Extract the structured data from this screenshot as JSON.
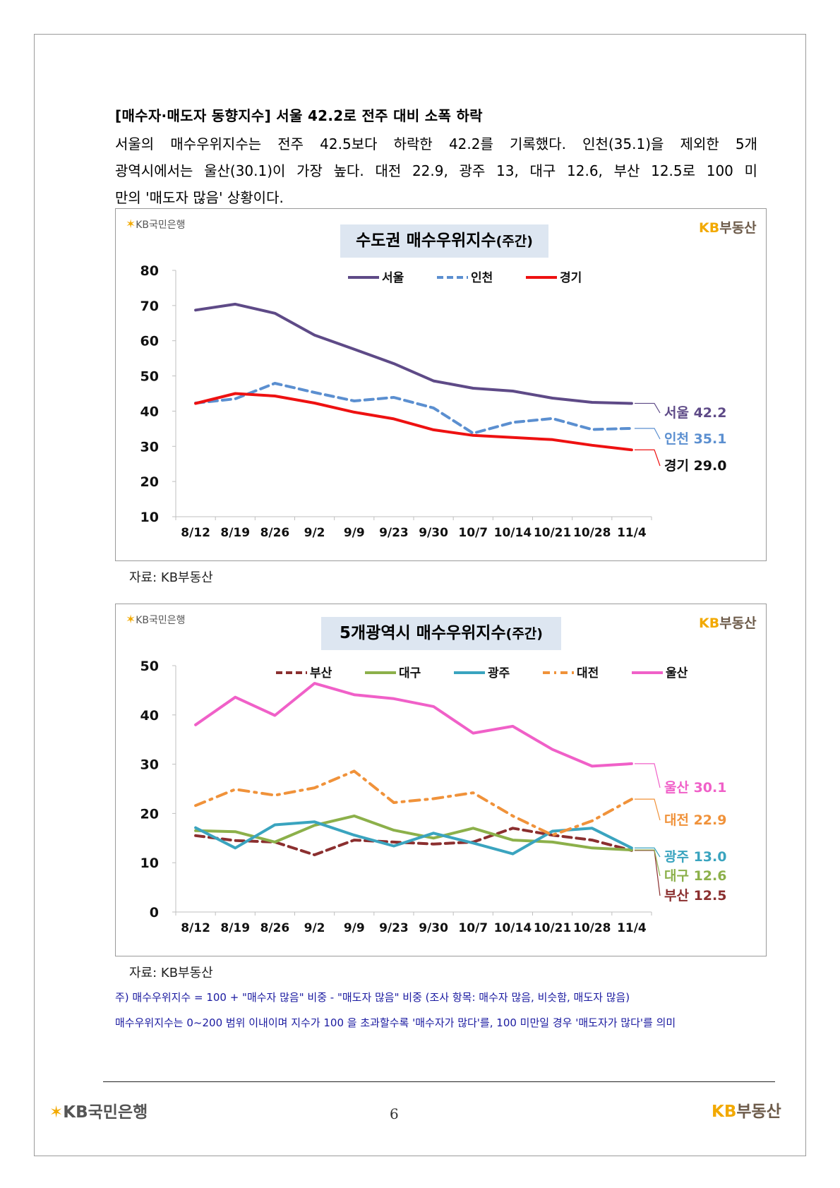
{
  "heading": "[매수자·매도자 동향지수] 서울 42.2로 전주 대비 소폭 하락",
  "paragraph_lines": [
    "서울의 매수우위지수는 전주 42.5보다 하락한 42.2를 기록했다. 인천(35.1)을 제외한 5개",
    "광역시에서는 울산(30.1)이 가장 높다. 대전 22.9, 광주 13, 대구 12.6, 부산 12.5로 100 미",
    "만의 '매도자 많음' 상황이다."
  ],
  "logos": {
    "kb_bank": "KB국민은행",
    "kb_realestate_kb": "KB",
    "kb_realestate_kr": "부동산"
  },
  "colors": {
    "seoul": "#5e4a87",
    "incheon": "#5b8fd0",
    "gyeonggi": "#ee1111",
    "busan": "#8b2f2f",
    "daegu": "#8cb04a",
    "gwangju": "#3aa4bf",
    "daejeon": "#f0923a",
    "ulsan": "#f060c8",
    "title_bg": "#dde6f1",
    "note": "#1a1aa0"
  },
  "chart1_title_main": "수도권 매수우위지수",
  "chart1_title_small": "(주간)",
  "chart2_title_main": "5개광역시 매수우위지수",
  "chart2_title_small": "(주간)",
  "source_1": "자료: KB부동산",
  "source_2": "자료: KB부동산",
  "notes": [
    "주) 매수우위지수 = 100 + \"매수자 많음\" 비중 - \"매도자 많음\" 비중  (조사 항목: 매수자 많음, 비슷함, 매도자 많음)",
    "매수우위지수는 0~200 범위 이내이며 지수가 100 을 초과할수록 '매수자가 많다'를, 100 미만일 경우 '매도자가 많다'를 의미"
  ],
  "page_number": "6",
  "chart_data": [
    {
      "type": "line",
      "title": "수도권 매수우위지수(주간)",
      "categories": [
        "8/12",
        "8/19",
        "8/26",
        "9/2",
        "9/9",
        "9/23",
        "9/30",
        "10/7",
        "10/14",
        "10/21",
        "10/28",
        "11/4"
      ],
      "ylim": [
        10,
        80
      ],
      "yticks": [
        10,
        20,
        30,
        40,
        50,
        60,
        70,
        80
      ],
      "grid": false,
      "legend_position": "top",
      "series": [
        {
          "name": "서울",
          "color": "#5e4a87",
          "dash": "solid",
          "values": [
            68.7,
            70.4,
            67.8,
            61.6,
            57.6,
            53.5,
            48.6,
            46.5,
            45.7,
            43.7,
            42.5,
            42.2
          ],
          "end_label": "서울 42.2"
        },
        {
          "name": "인천",
          "color": "#5b8fd0",
          "dash": "dash",
          "values": [
            42.3,
            43.5,
            47.9,
            45.3,
            42.9,
            43.9,
            40.9,
            33.7,
            36.8,
            37.9,
            34.8,
            35.1
          ],
          "end_label": "인천 35.1"
        },
        {
          "name": "경기",
          "color": "#ee1111",
          "dash": "solid",
          "values": [
            42.2,
            45.0,
            44.3,
            42.3,
            39.7,
            37.8,
            34.7,
            33.1,
            32.5,
            31.9,
            30.3,
            29.0
          ],
          "end_label": "경기 29.0"
        }
      ]
    },
    {
      "type": "line",
      "title": "5개광역시 매수우위지수(주간)",
      "categories": [
        "8/12",
        "8/19",
        "8/26",
        "9/2",
        "9/9",
        "9/23",
        "9/30",
        "10/7",
        "10/14",
        "10/21",
        "10/28",
        "11/4"
      ],
      "ylim": [
        0,
        50
      ],
      "yticks": [
        0,
        10,
        20,
        30,
        40,
        50
      ],
      "grid": false,
      "legend_position": "top",
      "series": [
        {
          "name": "부산",
          "color": "#8b2f2f",
          "dash": "dash",
          "values": [
            15.5,
            14.5,
            14.2,
            11.6,
            14.6,
            14.2,
            13.8,
            14.2,
            17.0,
            15.6,
            14.6,
            12.5
          ],
          "end_label": "부산 12.5"
        },
        {
          "name": "대구",
          "color": "#8cb04a",
          "dash": "solid",
          "values": [
            16.5,
            16.3,
            14.2,
            17.6,
            19.5,
            16.6,
            15.0,
            17.0,
            14.6,
            14.2,
            13.0,
            12.6
          ],
          "end_label": "대구 12.6"
        },
        {
          "name": "광주",
          "color": "#3aa4bf",
          "dash": "solid",
          "values": [
            17.1,
            13.0,
            17.7,
            18.3,
            15.6,
            13.4,
            16.0,
            14.0,
            11.8,
            16.4,
            17.0,
            13.0
          ],
          "end_label": "광주 13.0"
        },
        {
          "name": "대전",
          "color": "#f0923a",
          "dash": "dashdot",
          "values": [
            21.6,
            24.9,
            23.7,
            25.2,
            28.6,
            22.2,
            23.0,
            24.2,
            19.5,
            15.6,
            18.5,
            22.9
          ],
          "end_label": "대전 22.9"
        },
        {
          "name": "울산",
          "color": "#f060c8",
          "dash": "solid",
          "values": [
            38.0,
            43.6,
            39.9,
            46.4,
            44.1,
            43.3,
            41.7,
            36.3,
            37.7,
            33.0,
            29.6,
            30.1
          ],
          "end_label": "울산 30.1"
        }
      ]
    }
  ]
}
